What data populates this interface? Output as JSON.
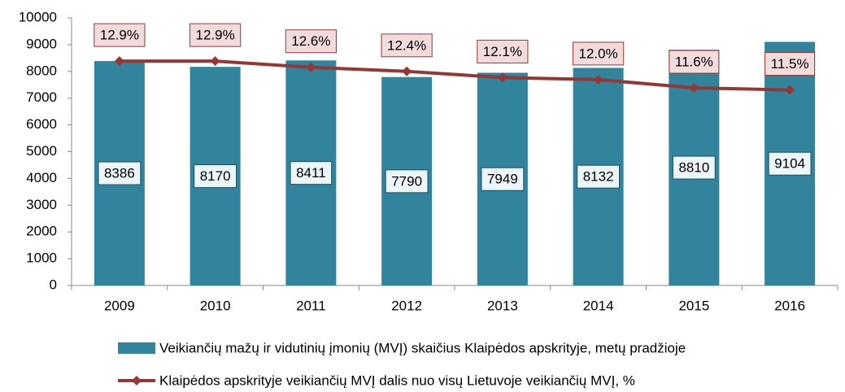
{
  "chart_data": {
    "type": "bar",
    "categories": [
      "2009",
      "2010",
      "2011",
      "2012",
      "2013",
      "2014",
      "2015",
      "2016"
    ],
    "series": [
      {
        "name": "Veikiančių mažų ir vidutinių įmonių (MVĮ) skaičius Klaipėdos apskrityje, metų pradžioje",
        "type": "bar",
        "color": "#31849b",
        "values": [
          8386,
          8170,
          8411,
          7790,
          7949,
          8132,
          8810,
          9104
        ]
      },
      {
        "name": "Klaipėdos  apskrityje veikiančių MVĮ dalis nuo visų Lietuvoje veikiančių MVĮ, %",
        "type": "line",
        "axis": "y2",
        "color": "#953735",
        "values": [
          12.9,
          12.9,
          12.6,
          12.4,
          12.1,
          12.0,
          11.6,
          11.5
        ],
        "value_labels": [
          "12.9%",
          "12.9%",
          "12.6%",
          "12.4%",
          "12.1%",
          "12.0%",
          "11.6%",
          "11.5%"
        ]
      }
    ],
    "ylim": [
      0,
      10000
    ],
    "yticks": [
      0,
      1000,
      2000,
      3000,
      4000,
      5000,
      6000,
      7000,
      8000,
      9000,
      10000
    ],
    "y2lim": [
      2,
      15
    ],
    "grid": false
  }
}
